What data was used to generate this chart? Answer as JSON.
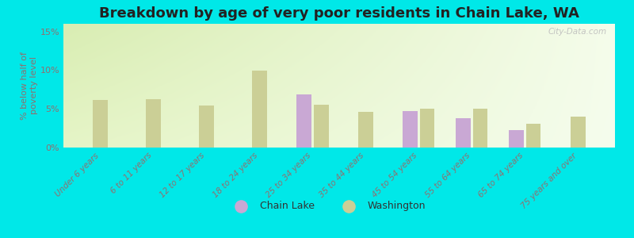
{
  "title": "Breakdown by age of very poor residents in Chain Lake, WA",
  "ylabel": "% below half of\npoverty level",
  "categories": [
    "Under 6 years",
    "6 to 11 years",
    "12 to 17 years",
    "18 to 24 years",
    "25 to 34 years",
    "35 to 44 years",
    "45 to 54 years",
    "55 to 64 years",
    "65 to 74 years",
    "75 years and over"
  ],
  "chain_lake": [
    null,
    null,
    null,
    null,
    6.9,
    null,
    4.7,
    3.8,
    2.3,
    null
  ],
  "washington": [
    6.2,
    6.3,
    5.4,
    10.0,
    5.5,
    4.6,
    5.0,
    5.0,
    3.1,
    4.0
  ],
  "chain_lake_color": "#c9a8d4",
  "washington_color": "#cbcf96",
  "bg_color_top_left": "#d8e8b0",
  "bg_color_top_right": "#f0f8e0",
  "bg_color_bottom": "#f5fae8",
  "outer_bg": "#00e8e8",
  "ylim_max": 16,
  "yticks": [
    0,
    5,
    10,
    15
  ],
  "ytick_labels": [
    "0%",
    "5%",
    "10%",
    "15%"
  ],
  "legend_chain_lake": "Chain Lake",
  "legend_washington": "Washington",
  "watermark": "City-Data.com",
  "bar_width": 0.28,
  "title_fontsize": 13,
  "tick_label_fontsize": 7.5,
  "ylabel_fontsize": 8,
  "tick_label_color": "#907070",
  "ylabel_color": "#907070"
}
